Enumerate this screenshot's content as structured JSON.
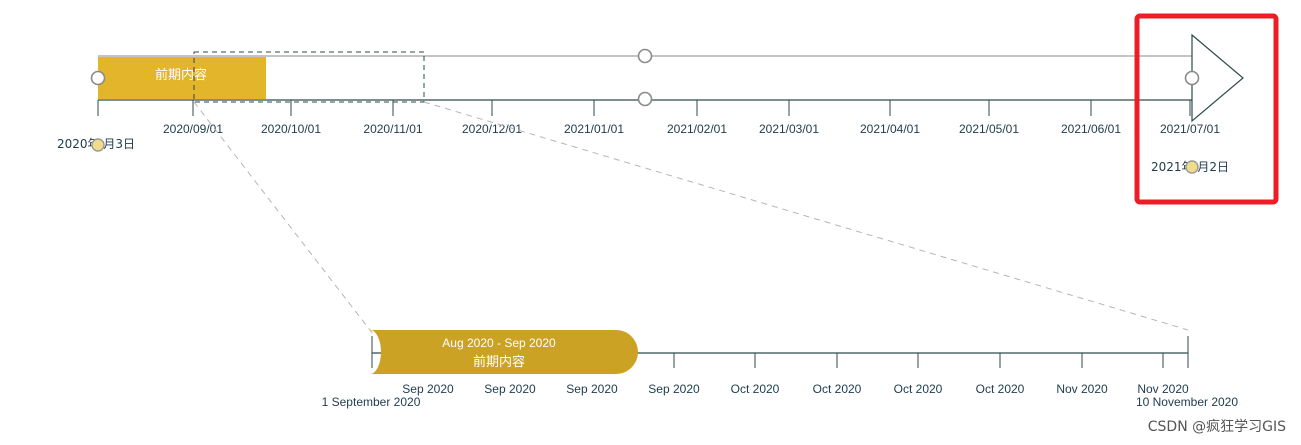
{
  "main_timeline": {
    "ticks": [
      "2020/09/01",
      "2020/10/01",
      "2020/11/01",
      "2020/12/01",
      "2021/01/01",
      "2021/02/01",
      "2021/03/01",
      "2021/04/01",
      "2021/05/01",
      "2021/06/01",
      "2021/07/01"
    ],
    "start_label": "2020年 月3日",
    "end_label": "2021年 月2日",
    "task_label": "前期内容"
  },
  "zoom_timeline": {
    "task_range": "Aug 2020 - Sep 2020",
    "task_label": "前期内容",
    "ticks": [
      "Sep 2020",
      "Sep 2020",
      "Sep 2020",
      "Sep 2020",
      "Oct 2020",
      "Oct 2020",
      "Oct 2020",
      "Oct 2020",
      "Nov 2020",
      "Nov 2020"
    ],
    "start_label": "1 September 2020",
    "end_label": "10 November 2020"
  },
  "highlight": {
    "color": "#ee1c25"
  },
  "colors": {
    "task_bar": "#e3b52b",
    "zoom_bar": "#cca224",
    "axis": "#2e4a4a",
    "milestone": "#f2dc8a"
  },
  "watermark": "CSDN @疯狂学习GIS"
}
